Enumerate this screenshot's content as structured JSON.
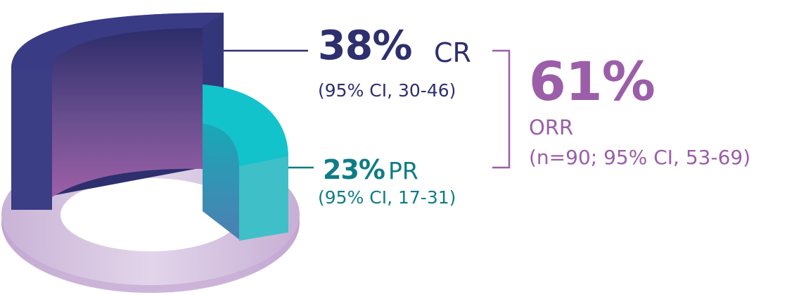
{
  "chart_data": {
    "type": "pie",
    "style": "3d-donut",
    "slices": [
      {
        "name": "CR",
        "value": 38,
        "value_label": "38%",
        "ci_label": "(95% CI, 30-46)",
        "color": "#2d2f6e"
      },
      {
        "name": "PR",
        "value": 23,
        "value_label": "23%",
        "ci_label": "(95% CI, 17-31)",
        "color": "#14b8c4"
      }
    ],
    "summary": {
      "value": 61,
      "value_label": "61%",
      "name": "ORR",
      "detail": "(n=90; 95% CI, 53-69)",
      "color": "#9b5ea8"
    },
    "remainder_color": "#d9c8e2"
  }
}
